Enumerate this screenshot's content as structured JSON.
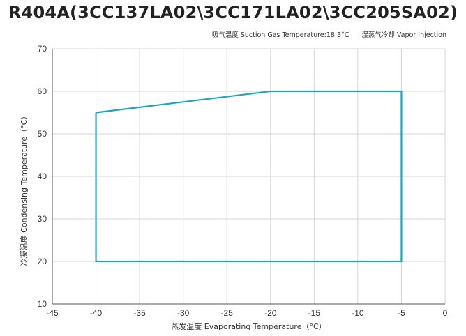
{
  "chart_data": {
    "type": "line",
    "title": "R404A(3CC137LA02\\3CC171LA02\\3CC205SA02)",
    "subtitle_left": "吸气温度 Suction Gas Temperature:18.3°C",
    "subtitle_right": "湿蒸气冷却 Vapor Injection",
    "xlabel": "蒸发温度 Evaporating Temperature（°C）",
    "ylabel": "冷凝温度 Condensing Temperature（°C）",
    "xlim": [
      -45,
      0
    ],
    "ylim": [
      10,
      70
    ],
    "x_ticks": [
      -45,
      -40,
      -35,
      -30,
      -25,
      -20,
      -15,
      -10,
      -5,
      0
    ],
    "y_ticks": [
      10,
      20,
      30,
      40,
      50,
      60,
      70
    ],
    "grid": true,
    "series": [
      {
        "color": "#1aa7bd",
        "points": [
          {
            "x": -40,
            "y": 55
          },
          {
            "x": -20,
            "y": 60
          },
          {
            "x": -5,
            "y": 60
          },
          {
            "x": -5,
            "y": 20
          },
          {
            "x": -40,
            "y": 20
          },
          {
            "x": -40,
            "y": 55
          }
        ]
      }
    ]
  }
}
